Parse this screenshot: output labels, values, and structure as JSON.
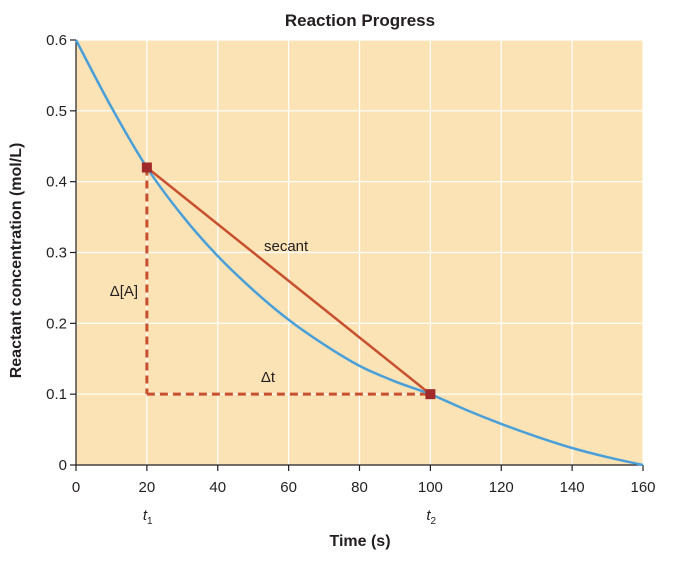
{
  "chart_data": {
    "type": "line",
    "title": "Reaction Progress",
    "xlabel": "Time (s)",
    "ylabel": "Reactant concentration (mol/L)",
    "xlim": [
      0,
      160
    ],
    "ylim": [
      0,
      0.6
    ],
    "x_ticks": [
      0,
      20,
      40,
      60,
      80,
      100,
      120,
      140,
      160
    ],
    "y_ticks": [
      0,
      0.1,
      0.2,
      0.3,
      0.4,
      0.5,
      0.6
    ],
    "y_tick_labels": [
      "0",
      "0.1",
      "0.2",
      "0.3",
      "0.4",
      "0.5",
      "0.6"
    ],
    "grid": true,
    "series": [
      {
        "type": "curve",
        "color": "#4a9fd8",
        "x": [
          0,
          10,
          20,
          30,
          40,
          50,
          60,
          70,
          80,
          90,
          100,
          110,
          120,
          130,
          140,
          150,
          160
        ],
        "y": [
          0.6,
          0.505,
          0.42,
          0.352,
          0.295,
          0.247,
          0.205,
          0.17,
          0.14,
          0.118,
          0.1,
          0.078,
          0.058,
          0.04,
          0.024,
          0.011,
          0.0
        ]
      }
    ],
    "secant": {
      "label": "secant",
      "color": "#c8502f",
      "points": [
        {
          "x": 20,
          "y": 0.42
        },
        {
          "x": 100,
          "y": 0.1
        }
      ]
    },
    "delta_lines": {
      "color": "#c8502f"
    },
    "annotations": {
      "delta_a": "Δ[A]",
      "delta_t": "Δt",
      "t1": "t",
      "t1_sub": "1",
      "t2": "t",
      "t2_sub": "2"
    },
    "colors": {
      "background": "#fbe3b6",
      "grid": "#ffffff",
      "marker": "#a02a2a",
      "axis": "#231f20"
    }
  }
}
